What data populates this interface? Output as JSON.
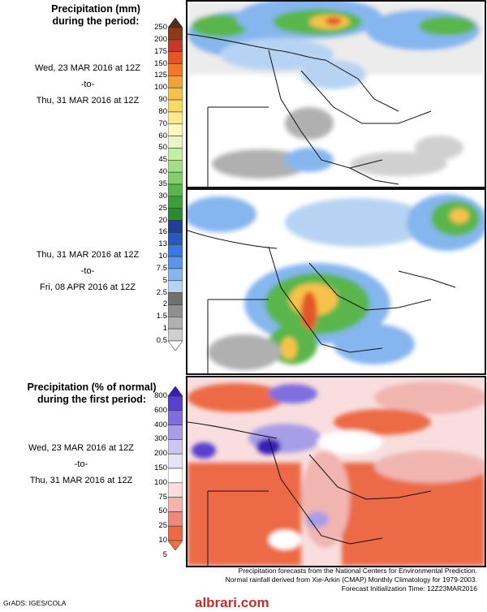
{
  "top_legend": {
    "title_line1": "Precipitation (mm)",
    "title_line2": "during the period:",
    "levels": [
      "250",
      "200",
      "175",
      "150",
      "125",
      "100",
      "90",
      "80",
      "70",
      "60",
      "50",
      "45",
      "40",
      "35",
      "30",
      "25",
      "20",
      "16",
      "13",
      "10",
      "7.5",
      "5",
      "2.5",
      "2",
      "1.5",
      "1",
      "0.5"
    ]
  },
  "period1": {
    "start": "Wed, 23 MAR 2016 at 12Z",
    "sep": "-to-",
    "end": "Thu, 31 MAR 2016 at 12Z"
  },
  "period2": {
    "start": "Thu, 31 MAR 2016 at 12Z",
    "sep": "-to-",
    "end": "Fri, 08 APR 2016 at 12Z"
  },
  "bottom_legend": {
    "title_line1": "Precipitation (% of normal)",
    "title_line2": "during the first period:",
    "levels": [
      "800",
      "600",
      "400",
      "300",
      "200",
      "150",
      "100",
      "75",
      "50",
      "25",
      "10",
      "5"
    ]
  },
  "period3": {
    "start": "Wed, 23 MAR 2016 at 12Z",
    "sep": "-to-",
    "end": "Thu, 31 MAR 2016 at 12Z"
  },
  "footer": {
    "line1": "Precipitation forecasts from the National Centers for Environmental Prediction.",
    "line2": "Normal rainfall derived from Xie-Arkin (CMAP) Monthly Climatology for 1979-2003.",
    "line3": "Forecast Initialization Time: 12Z23MAR2016",
    "credit": "GrADS: IGES/COLA",
    "watermark": "albrari.com"
  },
  "colors": {
    "precip_scale": [
      "#5a2a16",
      "#8b3a1a",
      "#c0392b",
      "#e5552a",
      "#f07a2a",
      "#f4a13a",
      "#f7c24a",
      "#f8da6a",
      "#fbe98e",
      "#fef7c2",
      "#e7f6c4",
      "#c6eca6",
      "#a3df88",
      "#7fcf6a",
      "#5ab64c",
      "#3c9f3a",
      "#2a8a2d",
      "#1f3f9a",
      "#2a58c0",
      "#3c78d8",
      "#5b97e6",
      "#86b6ef",
      "#b7d3f3",
      "#707070",
      "#8f8f8f",
      "#b0b0b0",
      "#d0d0d0",
      "#ffffff"
    ],
    "pct_scale": [
      "#3a1db5",
      "#5a40d0",
      "#7f6ee0",
      "#a79ee8",
      "#ccc6f0",
      "#e6e3f5",
      "#ffffff",
      "#f8dede",
      "#f1b5b0",
      "#eb8a7c",
      "#ec6a45",
      "#f07042"
    ]
  }
}
